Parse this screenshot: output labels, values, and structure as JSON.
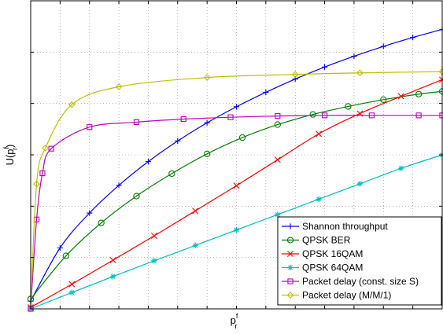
{
  "chart_data": {
    "type": "line",
    "title": "",
    "xlabel": {
      "base": "p",
      "sup": "f",
      "sub": "r"
    },
    "ylabel": {
      "prefix": "U(p",
      "sup": "f",
      "sub": "r",
      "suffix": ")"
    },
    "xlim": [
      0,
      1
    ],
    "ylim": [
      0,
      1
    ],
    "x_ticks": [
      0,
      0.0714,
      0.1429,
      0.2143,
      0.2857,
      0.3571,
      0.4286,
      0.5,
      0.5714,
      0.6429,
      0.7143,
      0.7857,
      0.8571,
      0.9286,
      1.0
    ],
    "y_ticks": [
      0,
      0.1667,
      0.3333,
      0.5,
      0.6667,
      0.8333,
      1.0
    ],
    "tick_labels_shown": false,
    "grid": true,
    "legend_position": "bottom-right",
    "series": [
      {
        "name": "Shannon throughput",
        "color": "#0000ff",
        "marker": "plus",
        "x": [
          0,
          0.0714,
          0.1429,
          0.2143,
          0.2857,
          0.3571,
          0.4286,
          0.5,
          0.5714,
          0.6429,
          0.7143,
          0.7857,
          0.8571,
          0.9286,
          1.0
        ],
        "y": [
          0.025,
          0.198,
          0.311,
          0.401,
          0.478,
          0.545,
          0.604,
          0.656,
          0.703,
          0.746,
          0.785,
          0.82,
          0.852,
          0.881,
          0.907
        ]
      },
      {
        "name": "QPSK BER",
        "color": "#008000",
        "marker": "circle",
        "x": [
          0,
          0.0857,
          0.1714,
          0.2571,
          0.3429,
          0.4286,
          0.5143,
          0.6,
          0.6857,
          0.7714,
          0.8571,
          0.9429,
          1.0
        ],
        "y": [
          0.032,
          0.172,
          0.279,
          0.366,
          0.439,
          0.503,
          0.556,
          0.598,
          0.631,
          0.657,
          0.679,
          0.697,
          0.706
        ]
      },
      {
        "name": "QPSK 16QAM",
        "color": "#ff0000",
        "marker": "x",
        "x": [
          0,
          0.1,
          0.2,
          0.3,
          0.4,
          0.5,
          0.6,
          0.7,
          0.8,
          0.9,
          1.0
        ],
        "y": [
          0.005,
          0.08,
          0.158,
          0.237,
          0.318,
          0.4,
          0.484,
          0.568,
          0.634,
          0.69,
          0.744
        ]
      },
      {
        "name": "QPSK 64QAM",
        "color": "#00bfbf",
        "marker": "star",
        "x": [
          0,
          0.1,
          0.2,
          0.3,
          0.4,
          0.5,
          0.6,
          0.7,
          0.8,
          0.9,
          1.0
        ],
        "y": [
          0.0,
          0.053,
          0.105,
          0.156,
          0.206,
          0.256,
          0.306,
          0.356,
          0.406,
          0.456,
          0.5
        ]
      },
      {
        "name": "Packet delay (const. size S)",
        "color": "#bf00bf",
        "marker": "square",
        "x": [
          0,
          0.0143,
          0.0286,
          0.05,
          0.1429,
          0.2571,
          0.3714,
          0.4857,
          0.6,
          0.7143,
          0.8286,
          0.9429,
          1.0
        ],
        "y": [
          0.0,
          0.29,
          0.44,
          0.52,
          0.59,
          0.606,
          0.616,
          0.622,
          0.626,
          0.628,
          0.628,
          0.628,
          0.628
        ]
      },
      {
        "name": "Packet delay (M/M/1)",
        "color": "#bfbf00",
        "marker": "diamond",
        "x": [
          0,
          0.0143,
          0.0357,
          0.1,
          0.2143,
          0.4286,
          0.6429,
          0.8,
          1.0
        ],
        "y": [
          0.0,
          0.405,
          0.522,
          0.663,
          0.721,
          0.751,
          0.761,
          0.766,
          0.77
        ],
        "markers_at": [
          0.0143,
          0.0357,
          0.1,
          0.2143,
          0.4286,
          0.6429,
          0.8,
          1.0
        ]
      }
    ]
  }
}
